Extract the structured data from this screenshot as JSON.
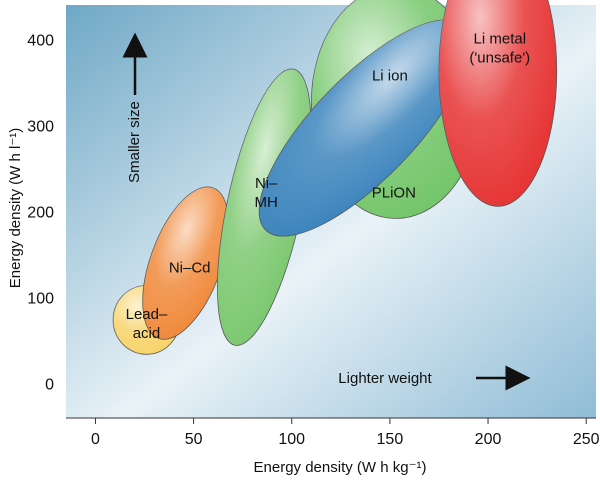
{
  "chart_data": {
    "type": "scatter",
    "title": "",
    "xlabel": "Energy density (W h kg⁻¹)",
    "ylabel": "Energy density (W h l⁻¹)",
    "xlim": [
      -15,
      255
    ],
    "ylim": [
      -40,
      440
    ],
    "x_ticks": [
      0,
      50,
      100,
      150,
      200,
      250
    ],
    "y_ticks": [
      0,
      100,
      200,
      300,
      400
    ],
    "grid": false,
    "legend": "none",
    "regions": [
      {
        "label_lines": [
          "Lead–",
          "acid"
        ],
        "cx": 26,
        "cy": 74,
        "rx": 17,
        "ry": 40,
        "angle": 0,
        "fill": "#f7d36a",
        "label_at": [
          26,
          70
        ]
      },
      {
        "label_lines": [
          "Ni–Cd"
        ],
        "cx": 46,
        "cy": 140,
        "rx": 18,
        "ry": 93,
        "angle": 20,
        "fill": "#f08a3c",
        "label_at": [
          48,
          135
        ]
      },
      {
        "label_lines": [
          "Ni–",
          "MH"
        ],
        "cx": 86,
        "cy": 205,
        "rx": 19,
        "ry": 164,
        "angle": 12,
        "fill": "#7cc870",
        "label_at": [
          87,
          222
        ]
      },
      {
        "label_lines": [
          "PLiON"
        ],
        "cx": 153,
        "cy": 327,
        "rx": 43,
        "ry": 135,
        "angle": 0,
        "fill": "#74c66a",
        "label_at": [
          152,
          222
        ]
      },
      {
        "label_lines": [
          "Li ion"
        ],
        "cx": 137,
        "cy": 297,
        "rx": 26,
        "ry": 165,
        "angle": 44,
        "fill": "#3d85bd",
        "label_at": [
          150,
          358
        ]
      },
      {
        "label_lines": [
          "Li metal",
          "('unsafe')"
        ],
        "cx": 205,
        "cy": 363,
        "rx": 30,
        "ry": 157,
        "angle": 0,
        "fill": "#e63434",
        "label_at": [
          206,
          390
        ]
      }
    ],
    "annotations": [
      {
        "text": "Smaller size",
        "direction": "up"
      },
      {
        "text": "Lighter weight",
        "direction": "right"
      }
    ]
  }
}
